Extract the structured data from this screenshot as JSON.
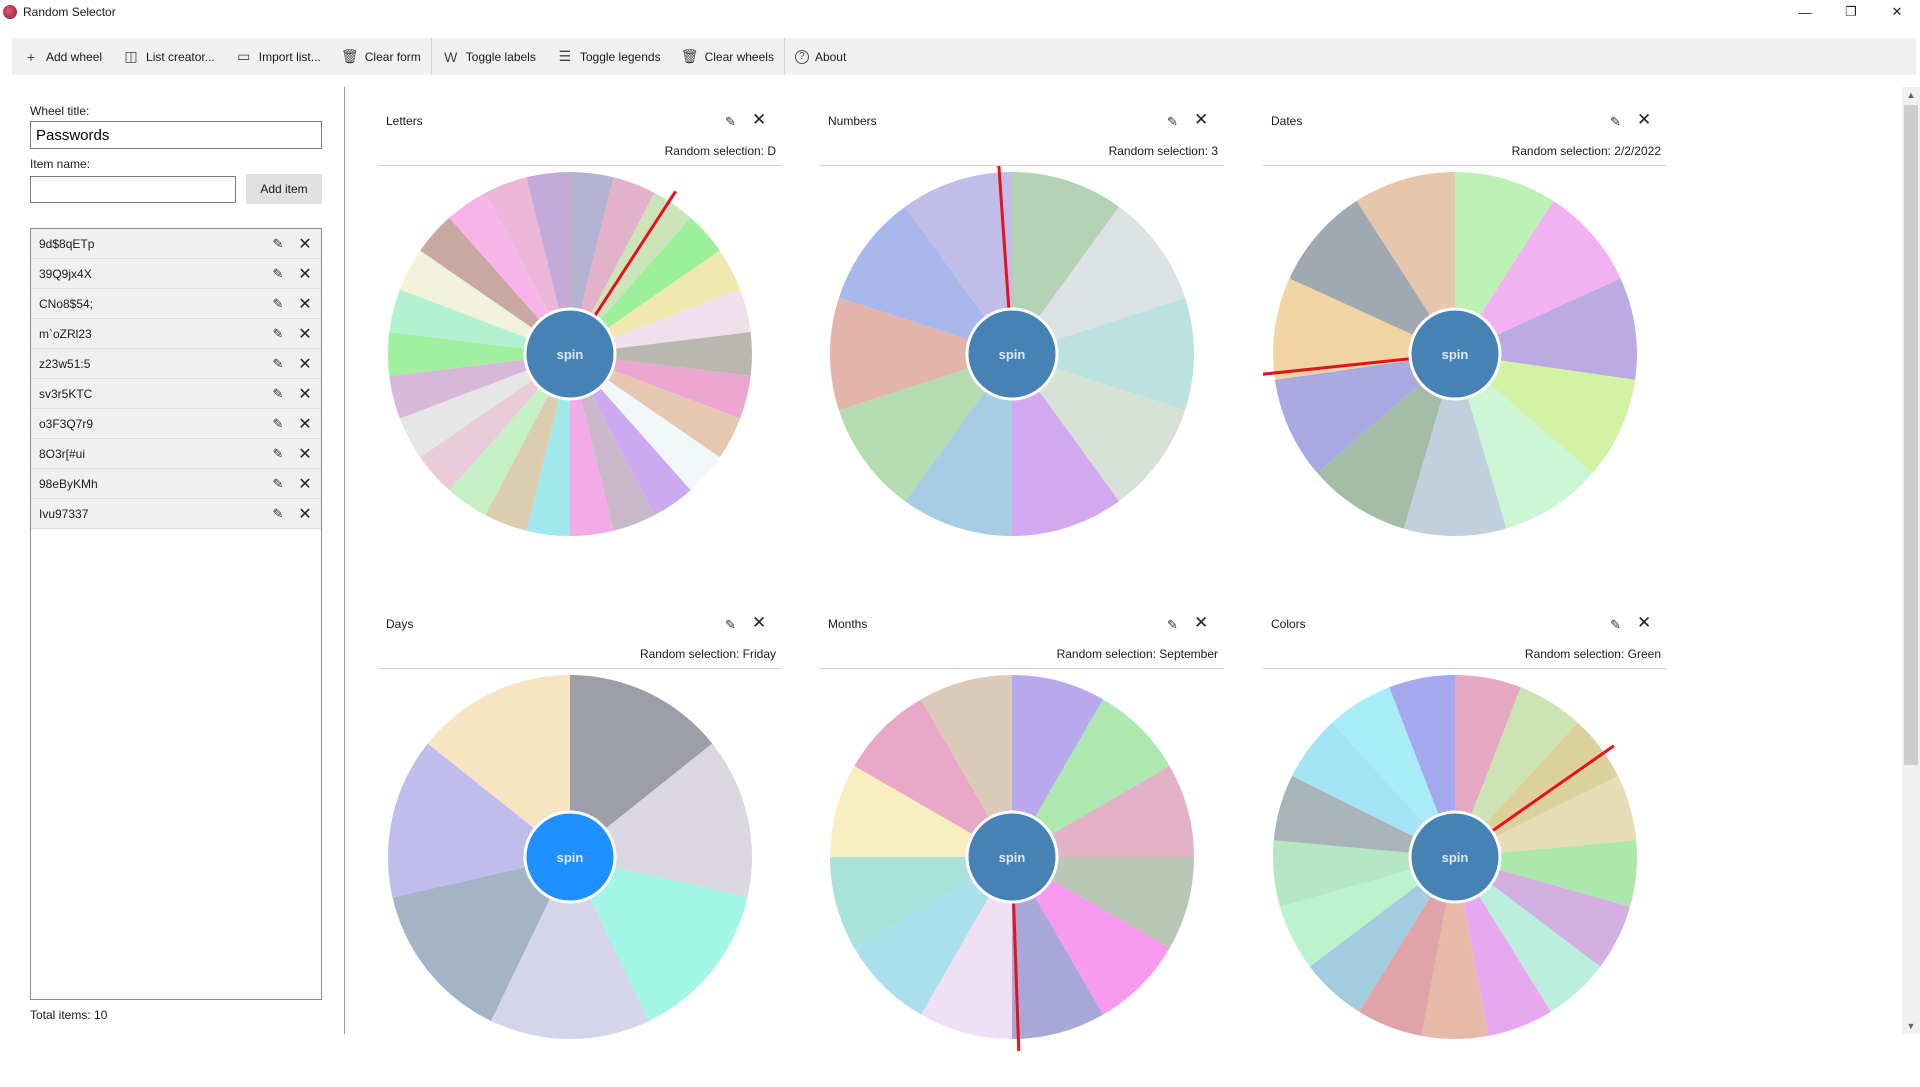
{
  "window": {
    "title": "Random Selector",
    "minimize": "—",
    "restore": "❐",
    "close": "✕"
  },
  "toolbar": [
    {
      "label": "Add wheel",
      "icon": "plus-icon",
      "glyph": "+",
      "sep_after": false
    },
    {
      "label": "List creator...",
      "icon": "list-icon",
      "glyph": "◫",
      "sep_after": false
    },
    {
      "label": "Import list...",
      "icon": "folder-icon",
      "glyph": "▭",
      "sep_after": false
    },
    {
      "label": "Clear form",
      "icon": "trash-icon",
      "glyph": "🗑",
      "sep_after": true
    },
    {
      "label": "Toggle labels",
      "icon": "w-icon",
      "glyph": "W",
      "sep_after": false
    },
    {
      "label": "Toggle legends",
      "icon": "legend-icon",
      "glyph": "☰",
      "sep_after": false
    },
    {
      "label": "Clear wheels",
      "icon": "trash-icon",
      "glyph": "🗑",
      "sep_after": true
    },
    {
      "label": "About",
      "icon": "help-icon",
      "glyph": "?",
      "sep_after": false
    }
  ],
  "form": {
    "wheel_title_label": "Wheel title:",
    "wheel_title_value": "Passwords",
    "item_name_label": "Item name:",
    "item_name_value": "",
    "add_item_label": "Add item"
  },
  "items": [
    "9d$8qETp",
    "39Q9jx4X",
    "CNo8$54;",
    "m`oZRl23",
    "z23w51:5",
    "sv3r5KTC",
    "o3F3Q7r9",
    "8O3r[#ui",
    "98eByKMh",
    "Ivu97337"
  ],
  "total_items": "Total items: 10",
  "wheels": [
    {
      "title": "Letters",
      "selection": "Random selection: D",
      "pointer_angle": 33,
      "spin_color": "#4682b4",
      "colors": [
        "#b4b3d2",
        "#e2b2cb",
        "#cce4ba",
        "#9cf09c",
        "#f0e8ae",
        "#f0e0ec",
        "#b8b8b0",
        "#eca6d2",
        "#e6c8b2",
        "#f2f8fa",
        "#ccaaf2",
        "#c8b8c8",
        "#f2aae8",
        "#a0e8ec",
        "#dcccb0",
        "#c6f0c6",
        "#e8ccd8",
        "#e6e6e6",
        "#d8b8d8",
        "#a0f0a0",
        "#b2f2d2",
        "#f2f2da",
        "#caa8a2",
        "#f8b4e8",
        "#ecb6d8",
        "#c4aad8"
      ]
    },
    {
      "title": "Numbers",
      "selection": "Random selection: 3",
      "pointer_angle": -4,
      "spin_color": "#4682b4",
      "colors": [
        "#b4d2b4",
        "#dce2e4",
        "#bce2e0",
        "#d6e2d6",
        "#d2a8ee",
        "#a8cce4",
        "#b4dcb0",
        "#e4b4aa",
        "#a8b8ec",
        "#c0bee8"
      ]
    },
    {
      "title": "Dates",
      "selection": "Random selection: 2/2/2022",
      "pointer_angle": -96,
      "spin_color": "#4682b4",
      "colors": [
        "#bcf2b4",
        "#f2b2f2",
        "#bcaae2",
        "#d2f2a4",
        "#ccf6d4",
        "#c0d0dc",
        "#a2bca6",
        "#aaa8e0",
        "#f0d4a2",
        "#a0a8b2",
        "#e6c6ac"
      ]
    },
    {
      "title": "Days",
      "selection": "Random selection: Friday",
      "pointer_angle": null,
      "spin_color": "#1e90ff",
      "colors": [
        "#9e9ea8",
        "#dcd8e0",
        "#a2f6e6",
        "#d4d4ec",
        "#a2b4c6",
        "#c0bcec",
        "#f6e4c2"
      ]
    },
    {
      "title": "Months",
      "selection": "Random selection: September",
      "pointer_angle": 178,
      "spin_color": "#4682b4",
      "colors": [
        "#b8a8ec",
        "#ace8b0",
        "#e2b2c6",
        "#b8c8b4",
        "#f89af0",
        "#a8a8d8",
        "#f0e0f4",
        "#aae0ec",
        "#a8e2d8",
        "#f8eec0",
        "#eaa8c8",
        "#dccab8"
      ]
    },
    {
      "title": "Colors",
      "selection": "Random selection: Green",
      "pointer_angle": 55,
      "spin_color": "#4682b4",
      "colors": [
        "#e4a8c0",
        "#cce4b4",
        "#dcd09c",
        "#e6dcb8",
        "#ace8ac",
        "#d2b0e0",
        "#bceede",
        "#e8a8f0",
        "#e8b8a8",
        "#e0a4a8",
        "#a2cce0",
        "#bcf2cc",
        "#b4e8c2",
        "#a8b4b8",
        "#a4e4f4",
        "#a8ecf8",
        "#a4a8ec"
      ]
    }
  ],
  "spin_label": "spin"
}
